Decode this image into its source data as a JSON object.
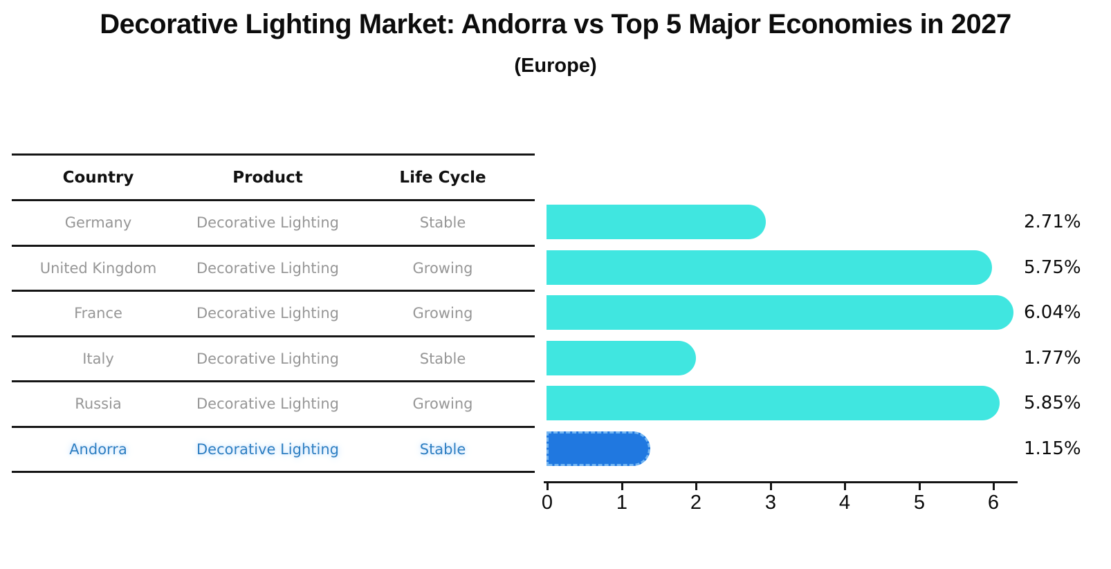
{
  "title": "Decorative Lighting Market: Andorra vs Top 5 Major Economies in 2027",
  "subtitle": "(Europe)",
  "table": {
    "headers": [
      "Country",
      "Product",
      "Life Cycle"
    ],
    "rows": [
      {
        "country": "Germany",
        "product": "Decorative Lighting",
        "life_cycle": "Stable",
        "highlight": false
      },
      {
        "country": "United Kingdom",
        "product": "Decorative Lighting",
        "life_cycle": "Growing",
        "highlight": false
      },
      {
        "country": "France",
        "product": "Decorative Lighting",
        "life_cycle": "Growing",
        "highlight": false
      },
      {
        "country": "Italy",
        "product": "Decorative Lighting",
        "life_cycle": "Stable",
        "highlight": false
      },
      {
        "country": "Russia",
        "product": "Decorative Lighting",
        "life_cycle": "Growing",
        "highlight": true
      }
    ],
    "highlight_row": {
      "country": "Andorra",
      "product": "Decorative Lighting",
      "life_cycle": "Stable"
    }
  },
  "chart_data": {
    "type": "bar",
    "orientation": "horizontal",
    "title": "Decorative Lighting Market: Andorra vs Top 5 Major Economies in 2027 (Europe)",
    "categories": [
      "Germany",
      "United Kingdom",
      "France",
      "Italy",
      "Russia",
      "Andorra"
    ],
    "values": [
      2.71,
      5.75,
      6.04,
      1.77,
      5.85,
      1.15
    ],
    "value_labels": [
      "2.71%",
      "5.75%",
      "6.04%",
      "1.77%",
      "5.85%",
      "1.15%"
    ],
    "x_ticks": [
      "0",
      "1",
      "2",
      "3",
      "4",
      "5",
      "6"
    ],
    "xlim": [
      0,
      6.35
    ],
    "xlabel": "",
    "ylabel": "",
    "grid": false,
    "legend": false,
    "highlight_index": 5,
    "bar_color": "#40E6E0",
    "highlight_bar_color": "#2078E0"
  },
  "colors": {
    "bar": "#40E6E0",
    "highlight_bar": "#2078E0",
    "highlight_border": "#74B6F2",
    "row_text": "#969696",
    "highlight_text": "#2E7FC2",
    "axis": "#141414",
    "background": "#FFFFFF"
  }
}
